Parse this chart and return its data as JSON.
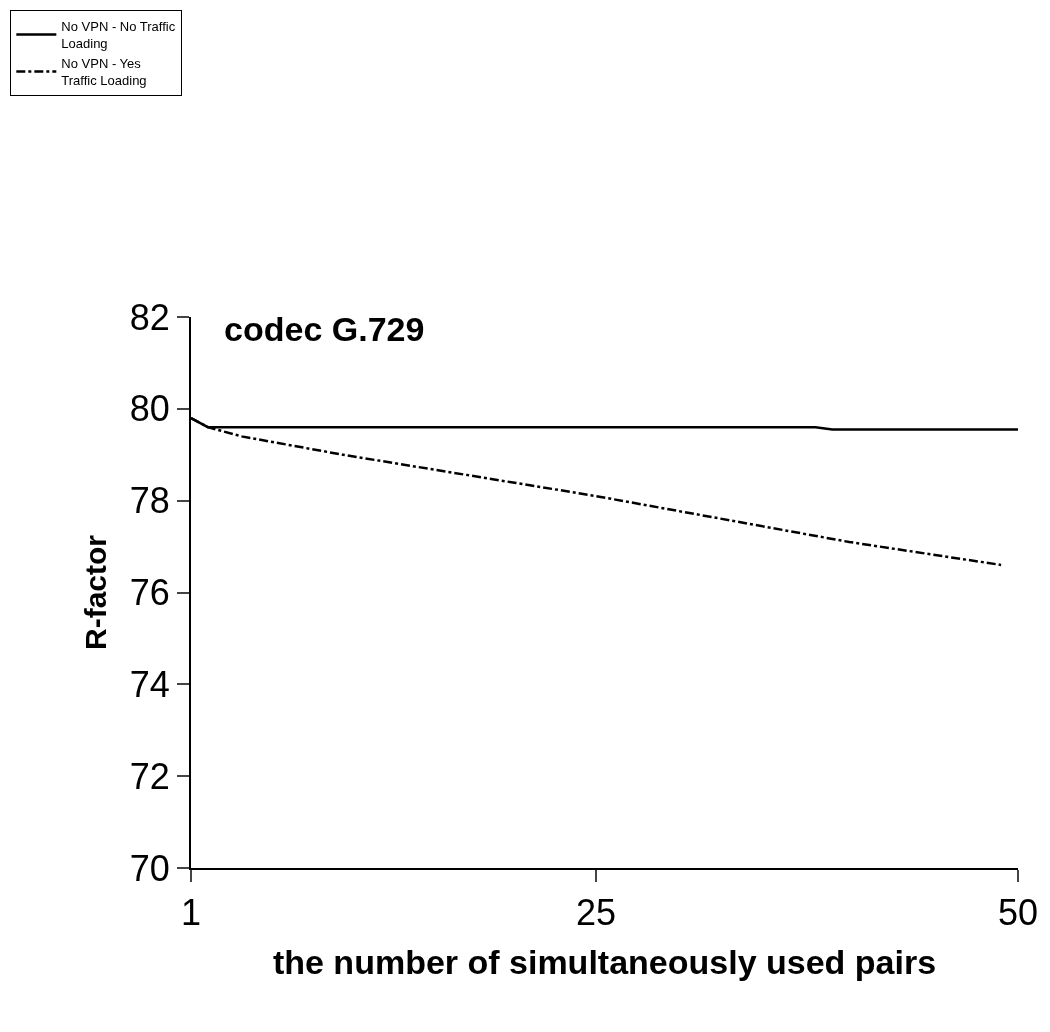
{
  "chart_data": {
    "type": "line",
    "title": "codec G.729",
    "xlabel": "the number of simultaneously used pairs",
    "ylabel": "R-factor",
    "xlim": [
      1,
      50
    ],
    "xticks": [
      1,
      25,
      50
    ],
    "ylim": [
      70,
      82
    ],
    "yticks": [
      70,
      72,
      74,
      76,
      78,
      80,
      82
    ],
    "grid": false,
    "legend": "top left",
    "marker": "none",
    "series": [
      {
        "name": "No VPN - No Traffic Loading",
        "color": "#000000",
        "line_style": "solid",
        "x": [
          1,
          2,
          10,
          25,
          38,
          39,
          50
        ],
        "values": [
          79.8,
          79.6,
          79.6,
          79.6,
          79.6,
          79.55,
          79.55
        ]
      },
      {
        "name": "No VPN - Yes Traffic Loading",
        "color": "#000000",
        "line_style": "dashdot",
        "x": [
          1,
          2,
          4,
          10,
          25,
          40,
          49
        ],
        "values": [
          79.8,
          79.6,
          79.4,
          79.0,
          78.1,
          77.1,
          76.6
        ]
      }
    ]
  }
}
